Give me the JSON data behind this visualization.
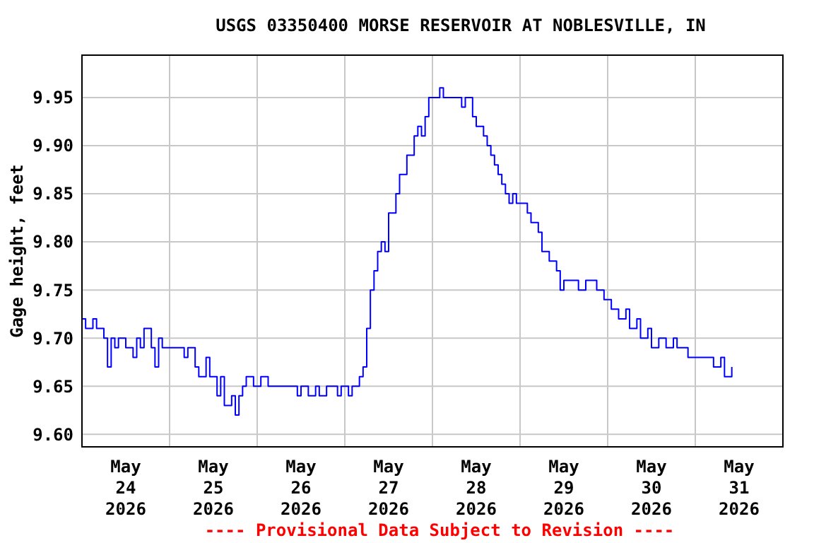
{
  "chart_data": {
    "type": "step",
    "title": "USGS 03350400 MORSE RESERVOIR AT NOBLESVILLE, IN",
    "ylabel": "Gage height, feet",
    "annotations": [
      "---- Provisional Data Subject to Revision ----"
    ],
    "xlim": [
      "2026-05-24T00:00",
      "2026-06-01T00:00"
    ],
    "xticks": [
      {
        "value": "2026-05-24T12:00",
        "label": "May\n24\n2026"
      },
      {
        "value": "2026-05-25T00:00",
        "label": null
      },
      {
        "value": "2026-05-25T12:00",
        "label": "May\n25\n2026"
      },
      {
        "value": "2026-05-26T00:00",
        "label": null
      },
      {
        "value": "2026-05-26T12:00",
        "label": "May\n26\n2026"
      },
      {
        "value": "2026-05-27T00:00",
        "label": null
      },
      {
        "value": "2026-05-27T12:00",
        "label": "May\n27\n2026"
      },
      {
        "value": "2026-05-28T00:00",
        "label": null
      },
      {
        "value": "2026-05-28T12:00",
        "label": "May\n28\n2026"
      },
      {
        "value": "2026-05-29T00:00",
        "label": null
      },
      {
        "value": "2026-05-29T12:00",
        "label": "May\n29\n2026"
      },
      {
        "value": "2026-05-30T00:00",
        "label": null
      },
      {
        "value": "2026-05-30T12:00",
        "label": "May\n30\n2026"
      },
      {
        "value": "2026-05-31T00:00",
        "label": null
      },
      {
        "value": "2026-05-31T12:00",
        "label": "May\n31\n2026"
      }
    ],
    "ylim": [
      9.587,
      9.994
    ],
    "yticks": [
      {
        "value": 9.6,
        "label": "9.60"
      },
      {
        "value": 9.65,
        "label": "9.65"
      },
      {
        "value": 9.7,
        "label": "9.70"
      },
      {
        "value": 9.75,
        "label": "9.75"
      },
      {
        "value": 9.8,
        "label": "9.80"
      },
      {
        "value": 9.85,
        "label": "9.85"
      },
      {
        "value": 9.9,
        "label": "9.90"
      },
      {
        "value": 9.95,
        "label": "9.95"
      }
    ],
    "grid": true,
    "series": [
      {
        "color": "#0000ff",
        "x": [
          "2026-05-24T00:00",
          "2026-05-24T01:00",
          "2026-05-24T03:00",
          "2026-05-24T04:00",
          "2026-05-24T06:00",
          "2026-05-24T07:00",
          "2026-05-24T08:00",
          "2026-05-24T09:00",
          "2026-05-24T10:00",
          "2026-05-24T12:00",
          "2026-05-24T14:00",
          "2026-05-24T15:00",
          "2026-05-24T16:00",
          "2026-05-24T17:00",
          "2026-05-24T19:00",
          "2026-05-24T20:00",
          "2026-05-24T21:00",
          "2026-05-24T22:00",
          "2026-05-25T04:00",
          "2026-05-25T05:00",
          "2026-05-25T07:00",
          "2026-05-25T08:00",
          "2026-05-25T10:00",
          "2026-05-25T11:00",
          "2026-05-25T13:00",
          "2026-05-25T14:00",
          "2026-05-25T15:00",
          "2026-05-25T17:00",
          "2026-05-25T18:00",
          "2026-05-25T19:00",
          "2026-05-25T20:00",
          "2026-05-25T21:00",
          "2026-05-25T23:00",
          "2026-05-26T01:00",
          "2026-05-26T03:00",
          "2026-05-26T11:00",
          "2026-05-26T12:00",
          "2026-05-26T14:00",
          "2026-05-26T16:00",
          "2026-05-26T17:00",
          "2026-05-26T19:00",
          "2026-05-26T22:00",
          "2026-05-26T23:00",
          "2026-05-27T01:00",
          "2026-05-27T02:00",
          "2026-05-27T04:00",
          "2026-05-27T05:00",
          "2026-05-27T06:00",
          "2026-05-27T07:00",
          "2026-05-27T08:00",
          "2026-05-27T09:00",
          "2026-05-27T10:00",
          "2026-05-27T11:00",
          "2026-05-27T12:00",
          "2026-05-27T14:00",
          "2026-05-27T15:00",
          "2026-05-27T17:00",
          "2026-05-27T18:00",
          "2026-05-27T19:00",
          "2026-05-27T20:00",
          "2026-05-27T21:00",
          "2026-05-27T22:00",
          "2026-05-27T23:00",
          "2026-05-28T00:00",
          "2026-05-28T02:00",
          "2026-05-28T03:00",
          "2026-05-28T06:00",
          "2026-05-28T08:00",
          "2026-05-28T09:00",
          "2026-05-28T11:00",
          "2026-05-28T12:00",
          "2026-05-28T14:00",
          "2026-05-28T15:00",
          "2026-05-28T16:00",
          "2026-05-28T17:00",
          "2026-05-28T18:00",
          "2026-05-28T19:00",
          "2026-05-28T20:00",
          "2026-05-28T21:00",
          "2026-05-28T22:00",
          "2026-05-28T23:00",
          "2026-05-29T02:00",
          "2026-05-29T03:00",
          "2026-05-29T05:00",
          "2026-05-29T06:00",
          "2026-05-29T08:00",
          "2026-05-29T10:00",
          "2026-05-29T11:00",
          "2026-05-29T12:00",
          "2026-05-29T14:00",
          "2026-05-29T16:00",
          "2026-05-29T18:00",
          "2026-05-29T21:00",
          "2026-05-29T23:00",
          "2026-05-30T01:00",
          "2026-05-30T03:00",
          "2026-05-30T05:00",
          "2026-05-30T06:00",
          "2026-05-30T08:00",
          "2026-05-30T09:00",
          "2026-05-30T11:00",
          "2026-05-30T12:00",
          "2026-05-30T14:00",
          "2026-05-30T16:00",
          "2026-05-30T18:00",
          "2026-05-30T19:00",
          "2026-05-30T22:00",
          "2026-05-31T03:00",
          "2026-05-31T05:00",
          "2026-05-31T07:00",
          "2026-05-31T08:00",
          "2026-05-31T10:00"
        ],
        "values": [
          9.72,
          9.71,
          9.72,
          9.71,
          9.7,
          9.67,
          9.7,
          9.69,
          9.7,
          9.69,
          9.68,
          9.7,
          9.69,
          9.71,
          9.69,
          9.67,
          9.7,
          9.69,
          9.68,
          9.69,
          9.67,
          9.66,
          9.68,
          9.66,
          9.64,
          9.66,
          9.63,
          9.64,
          9.62,
          9.64,
          9.65,
          9.66,
          9.65,
          9.66,
          9.65,
          9.64,
          9.65,
          9.64,
          9.65,
          9.64,
          9.65,
          9.64,
          9.65,
          9.64,
          9.65,
          9.66,
          9.67,
          9.71,
          9.75,
          9.77,
          9.79,
          9.8,
          9.79,
          9.83,
          9.85,
          9.87,
          9.89,
          9.89,
          9.91,
          9.92,
          9.91,
          9.93,
          9.95,
          9.95,
          9.96,
          9.95,
          9.95,
          9.94,
          9.95,
          9.93,
          9.92,
          9.91,
          9.9,
          9.89,
          9.88,
          9.87,
          9.86,
          9.85,
          9.84,
          9.85,
          9.84,
          9.83,
          9.82,
          9.81,
          9.79,
          9.78,
          9.77,
          9.75,
          9.76,
          9.76,
          9.75,
          9.76,
          9.75,
          9.74,
          9.73,
          9.72,
          9.73,
          9.71,
          9.72,
          9.7,
          9.71,
          9.69,
          9.7,
          9.69,
          9.7,
          9.69,
          9.68,
          9.68,
          9.67,
          9.68,
          9.66,
          9.67
        ]
      }
    ]
  }
}
